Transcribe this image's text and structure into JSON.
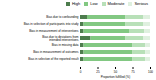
{
  "chart_data": {
    "type": "bar",
    "orientation": "horizontal",
    "stacked": true,
    "categories": [
      "Bias due to confounding",
      "Bias in selection of participants into study",
      "Bias in measurement of interventions",
      "Bias due to deviations from\nintended interventions",
      "Bias in missing data",
      "Bias in measurement of outcomes",
      "Bias in selection of the reported result"
    ],
    "series": [
      {
        "name": "High",
        "color": "#4d7c4d",
        "values": [
          10,
          5,
          5,
          15,
          5,
          5,
          5
        ]
      },
      {
        "name": "Low",
        "color": "#82c882",
        "values": [
          55,
          60,
          65,
          50,
          70,
          70,
          70
        ]
      },
      {
        "name": "Moderate",
        "color": "#b8e0b8",
        "values": [
          25,
          25,
          22,
          25,
          18,
          18,
          18
        ]
      },
      {
        "name": "Serious",
        "color": "#dff0df",
        "values": [
          10,
          10,
          8,
          10,
          7,
          7,
          7
        ]
      }
    ],
    "xlabel": "Proportion fulfilled (%)",
    "xlim": [
      0,
      100
    ],
    "xticks": [
      0,
      25,
      50,
      75,
      100
    ],
    "legend": "upper right"
  }
}
